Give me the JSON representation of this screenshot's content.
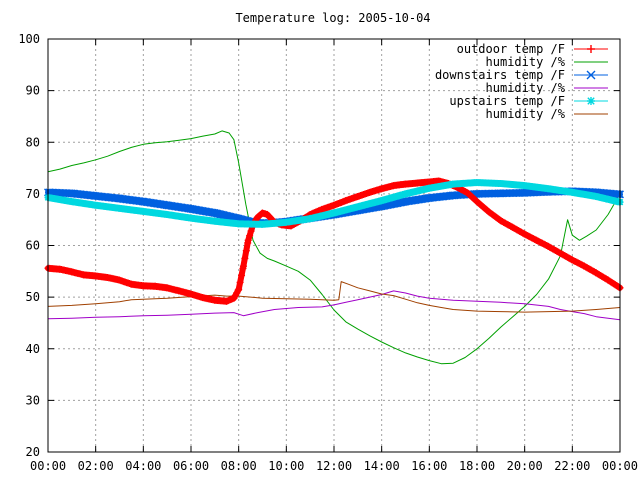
{
  "chart_data": {
    "type": "line",
    "title": "Temperature log: 2005-10-04",
    "xlabel": "",
    "ylabel": "",
    "ylim": [
      20,
      100
    ],
    "xlim": [
      0,
      24
    ],
    "x_unit": "hours",
    "x_ticks": [
      "00:00",
      "02:00",
      "04:00",
      "06:00",
      "08:00",
      "10:00",
      "12:00",
      "14:00",
      "16:00",
      "18:00",
      "20:00",
      "22:00",
      "00:00"
    ],
    "y_ticks": [
      20,
      30,
      40,
      50,
      60,
      70,
      80,
      90,
      100
    ],
    "grid": true,
    "legend_position": "top-right",
    "series": [
      {
        "name": "outdoor temp /F",
        "color": "#ff0000",
        "marker": "plus",
        "points": [
          [
            0,
            55.6
          ],
          [
            0.5,
            55.4
          ],
          [
            1,
            54.9
          ],
          [
            1.5,
            54.3
          ],
          [
            2,
            54.1
          ],
          [
            2.5,
            53.8
          ],
          [
            3,
            53.3
          ],
          [
            3.5,
            52.5
          ],
          [
            4,
            52.2
          ],
          [
            4.5,
            52.1
          ],
          [
            5,
            51.8
          ],
          [
            5.5,
            51.2
          ],
          [
            6,
            50.6
          ],
          [
            6.5,
            49.9
          ],
          [
            7,
            49.4
          ],
          [
            7.5,
            49.2
          ],
          [
            7.8,
            49.8
          ],
          [
            8.0,
            51.5
          ],
          [
            8.2,
            56
          ],
          [
            8.4,
            61
          ],
          [
            8.6,
            64
          ],
          [
            8.8,
            65.5
          ],
          [
            9.0,
            66.3
          ],
          [
            9.2,
            66
          ],
          [
            9.5,
            64.5
          ],
          [
            9.8,
            64
          ],
          [
            10.2,
            63.8
          ],
          [
            10.6,
            64.8
          ],
          [
            11,
            66
          ],
          [
            11.5,
            67
          ],
          [
            12,
            67.8
          ],
          [
            12.5,
            68.7
          ],
          [
            13,
            69.5
          ],
          [
            13.5,
            70.3
          ],
          [
            14,
            71
          ],
          [
            14.5,
            71.6
          ],
          [
            15,
            71.9
          ],
          [
            15.5,
            72.1
          ],
          [
            16,
            72.3
          ],
          [
            16.4,
            72.5
          ],
          [
            16.8,
            72
          ],
          [
            17.2,
            71.2
          ],
          [
            17.6,
            70.2
          ],
          [
            18,
            68.5
          ],
          [
            18.5,
            66.5
          ],
          [
            19,
            64.8
          ],
          [
            19.5,
            63.5
          ],
          [
            20,
            62.2
          ],
          [
            20.5,
            61
          ],
          [
            21,
            59.8
          ],
          [
            21.5,
            58.5
          ],
          [
            22,
            57.2
          ],
          [
            22.5,
            56
          ],
          [
            23,
            54.7
          ],
          [
            23.5,
            53.3
          ],
          [
            24,
            51.8
          ]
        ]
      },
      {
        "name": "humidity /%",
        "color": "#00a000",
        "marker": "none",
        "points": [
          [
            0,
            74.3
          ],
          [
            0.5,
            74.8
          ],
          [
            1,
            75.5
          ],
          [
            1.5,
            76
          ],
          [
            2,
            76.6
          ],
          [
            2.5,
            77.3
          ],
          [
            3,
            78.2
          ],
          [
            3.5,
            79
          ],
          [
            4,
            79.6
          ],
          [
            4.5,
            79.9
          ],
          [
            5,
            80.1
          ],
          [
            5.5,
            80.4
          ],
          [
            6,
            80.7
          ],
          [
            6.5,
            81.2
          ],
          [
            7,
            81.6
          ],
          [
            7.3,
            82.2
          ],
          [
            7.6,
            81.8
          ],
          [
            7.8,
            80.5
          ],
          [
            8.0,
            76
          ],
          [
            8.3,
            68
          ],
          [
            8.6,
            61
          ],
          [
            8.9,
            58.5
          ],
          [
            9.2,
            57.5
          ],
          [
            9.5,
            57
          ],
          [
            10,
            56
          ],
          [
            10.5,
            55
          ],
          [
            11,
            53.3
          ],
          [
            11.5,
            50.5
          ],
          [
            12,
            47.5
          ],
          [
            12.5,
            45.2
          ],
          [
            13,
            43.8
          ],
          [
            13.5,
            42.5
          ],
          [
            14,
            41.3
          ],
          [
            14.5,
            40.2
          ],
          [
            15,
            39.2
          ],
          [
            15.5,
            38.4
          ],
          [
            16,
            37.7
          ],
          [
            16.5,
            37.1
          ],
          [
            17,
            37.2
          ],
          [
            17.5,
            38.3
          ],
          [
            18,
            40
          ],
          [
            18.5,
            42
          ],
          [
            19,
            44.2
          ],
          [
            19.5,
            46.2
          ],
          [
            20,
            48.2
          ],
          [
            20.5,
            50.5
          ],
          [
            21,
            53.5
          ],
          [
            21.5,
            58
          ],
          [
            21.8,
            65
          ],
          [
            22.0,
            62
          ],
          [
            22.3,
            61
          ],
          [
            22.6,
            61.8
          ],
          [
            23,
            63
          ],
          [
            23.5,
            66
          ],
          [
            24,
            70
          ]
        ]
      },
      {
        "name": "downstairs temp /F",
        "color": "#0060e0",
        "marker": "cross",
        "points": [
          [
            0,
            70.3
          ],
          [
            1,
            70.1
          ],
          [
            2,
            69.6
          ],
          [
            3,
            69.1
          ],
          [
            4,
            68.5
          ],
          [
            5,
            67.8
          ],
          [
            6,
            67.1
          ],
          [
            7,
            66.3
          ],
          [
            8,
            65.2
          ],
          [
            8.5,
            64.6
          ],
          [
            9,
            64.3
          ],
          [
            10,
            64.6
          ],
          [
            11,
            65.3
          ],
          [
            12,
            66
          ],
          [
            13,
            66.8
          ],
          [
            14,
            67.6
          ],
          [
            15,
            68.5
          ],
          [
            16,
            69.2
          ],
          [
            17,
            69.7
          ],
          [
            18,
            70
          ],
          [
            19,
            70.1
          ],
          [
            20,
            70.2
          ],
          [
            21,
            70.4
          ],
          [
            22,
            70.5
          ],
          [
            23,
            70.3
          ],
          [
            24,
            69.9
          ]
        ]
      },
      {
        "name": "humidity /%",
        "color": "#a000c8",
        "marker": "none",
        "points": [
          [
            0,
            45.8
          ],
          [
            1,
            45.9
          ],
          [
            2,
            46.1
          ],
          [
            3,
            46.2
          ],
          [
            4,
            46.4
          ],
          [
            5,
            46.5
          ],
          [
            6,
            46.7
          ],
          [
            7,
            46.9
          ],
          [
            7.8,
            47
          ],
          [
            8.2,
            46.4
          ],
          [
            8.8,
            47
          ],
          [
            9.5,
            47.6
          ],
          [
            10.5,
            48
          ],
          [
            11.5,
            48.1
          ],
          [
            12,
            48.5
          ],
          [
            12.5,
            49
          ],
          [
            13,
            49.5
          ],
          [
            13.5,
            50
          ],
          [
            14,
            50.5
          ],
          [
            14.5,
            51.2
          ],
          [
            15,
            50.8
          ],
          [
            15.5,
            50.2
          ],
          [
            16,
            49.8
          ],
          [
            17,
            49.4
          ],
          [
            18,
            49.2
          ],
          [
            19,
            49
          ],
          [
            20,
            48.7
          ],
          [
            21,
            48.2
          ],
          [
            21.5,
            47.6
          ],
          [
            22,
            47.2
          ],
          [
            22.5,
            46.8
          ],
          [
            23,
            46.2
          ],
          [
            24,
            45.6
          ]
        ]
      },
      {
        "name": "upstairs temp /F",
        "color": "#00d8e0",
        "marker": "star",
        "points": [
          [
            0,
            69.3
          ],
          [
            1,
            68.5
          ],
          [
            2,
            67.8
          ],
          [
            3,
            67.2
          ],
          [
            4,
            66.6
          ],
          [
            5,
            66
          ],
          [
            6,
            65.3
          ],
          [
            7,
            64.7
          ],
          [
            8,
            64.2
          ],
          [
            9,
            64.1
          ],
          [
            10,
            64.5
          ],
          [
            11,
            65.2
          ],
          [
            12,
            66.3
          ],
          [
            13,
            67.5
          ],
          [
            14,
            68.7
          ],
          [
            15,
            70
          ],
          [
            16,
            71.1
          ],
          [
            17,
            71.9
          ],
          [
            18,
            72.2
          ],
          [
            19,
            72
          ],
          [
            20,
            71.6
          ],
          [
            21,
            71
          ],
          [
            22,
            70.3
          ],
          [
            23,
            69.5
          ],
          [
            24,
            68.4
          ]
        ]
      },
      {
        "name": "humidity /%",
        "color": "#a04000",
        "marker": "none",
        "points": [
          [
            0,
            48.2
          ],
          [
            1,
            48.4
          ],
          [
            2,
            48.7
          ],
          [
            3,
            49.1
          ],
          [
            3.5,
            49.5
          ],
          [
            4,
            49.6
          ],
          [
            5,
            49.8
          ],
          [
            6,
            50.1
          ],
          [
            7,
            50.4
          ],
          [
            7.5,
            50.2
          ],
          [
            8,
            50.2
          ],
          [
            8.5,
            50
          ],
          [
            9,
            49.8
          ],
          [
            10,
            49.7
          ],
          [
            11,
            49.6
          ],
          [
            12,
            49.4
          ],
          [
            12.2,
            49.5
          ],
          [
            12.3,
            53
          ],
          [
            12.6,
            52.5
          ],
          [
            13,
            51.8
          ],
          [
            13.5,
            51.2
          ],
          [
            14,
            50.6
          ],
          [
            14.5,
            50.3
          ],
          [
            15,
            49.6
          ],
          [
            15.5,
            48.9
          ],
          [
            16,
            48.4
          ],
          [
            16.5,
            48
          ],
          [
            17,
            47.6
          ],
          [
            18,
            47.3
          ],
          [
            19,
            47.2
          ],
          [
            20,
            47.1
          ],
          [
            21,
            47.2
          ],
          [
            22,
            47.3
          ],
          [
            23,
            47.6
          ],
          [
            24,
            48
          ]
        ]
      }
    ]
  }
}
